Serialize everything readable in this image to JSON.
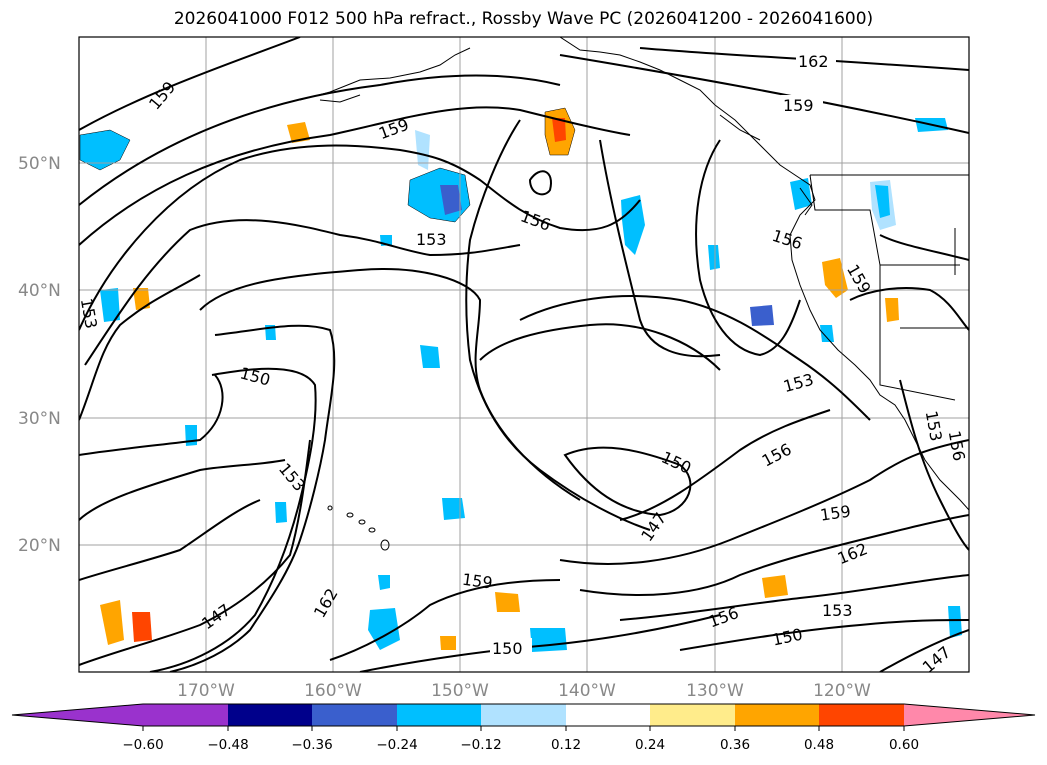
{
  "title": "2026041000 F012 500 hPa refract., Rossby Wave PC (2026041200 - 2026041600)",
  "lat_labels": [
    "50°N",
    "40°N",
    "30°N",
    "20°N"
  ],
  "lon_labels": [
    "170°W",
    "160°W",
    "150°W",
    "140°W",
    "130°W",
    "120°W"
  ],
  "contour_labels": [
    "147",
    "150",
    "153",
    "156",
    "159",
    "162"
  ],
  "colorbar": {
    "levels": [
      "−0.60",
      "−0.48",
      "−0.36",
      "−0.24",
      "−0.12",
      "0.12",
      "0.24",
      "0.36",
      "0.48",
      "0.60"
    ],
    "colors": [
      "#9a32cd",
      "#00008b",
      "#3a5fcd",
      "#00bfff",
      "#b0e2ff",
      "#ffffff",
      "#ffec8b",
      "#ffa500",
      "#ff4500",
      "#b22222",
      "#ff88aa"
    ]
  },
  "map_colors": {
    "contour": "#000000",
    "grid": "#a0a0a0",
    "coast": "#000000"
  }
}
